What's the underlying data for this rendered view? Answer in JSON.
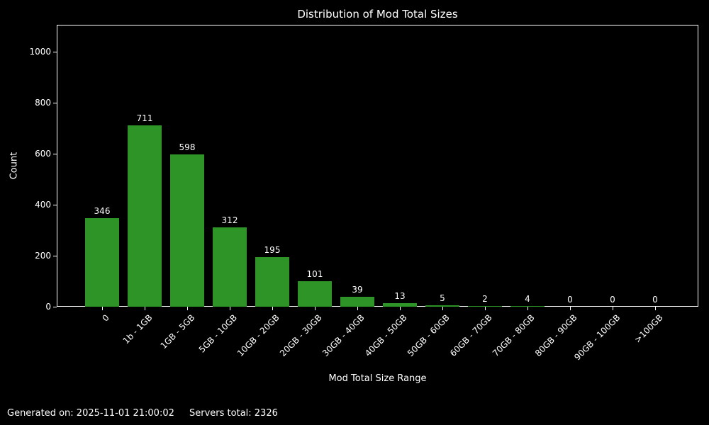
{
  "colors": {
    "background": "#000000",
    "text": "#ffffff",
    "spine": "#ffffff",
    "bar": "#2e9428"
  },
  "footer": {
    "generated": "Generated on: 2025-11-01 21:00:02",
    "servers_total": "Servers total: 2326"
  },
  "chart_data": {
    "type": "bar",
    "title": "Distribution of Mod Total Sizes",
    "xlabel": "Mod Total Size Range",
    "ylabel": "Count",
    "categories": [
      "0",
      "1b - 1GB",
      "1GB - 5GB",
      "5GB - 10GB",
      "10GB - 20GB",
      "20GB - 30GB",
      "30GB - 40GB",
      "40GB - 50GB",
      "50GB - 60GB",
      "60GB - 70GB",
      "70GB - 80GB",
      "80GB - 90GB",
      "90GB - 100GB",
      ">100GB"
    ],
    "values": [
      346,
      711,
      598,
      312,
      195,
      101,
      39,
      13,
      5,
      2,
      4,
      0,
      0,
      0
    ],
    "bar_labels_shown": true,
    "yticks": [
      0,
      200,
      400,
      600,
      800,
      1000
    ],
    "ylim": [
      0,
      1105
    ],
    "xtick_rotation_deg": 45,
    "grid": false,
    "legend": "none",
    "bar_color": "#2e9428"
  }
}
